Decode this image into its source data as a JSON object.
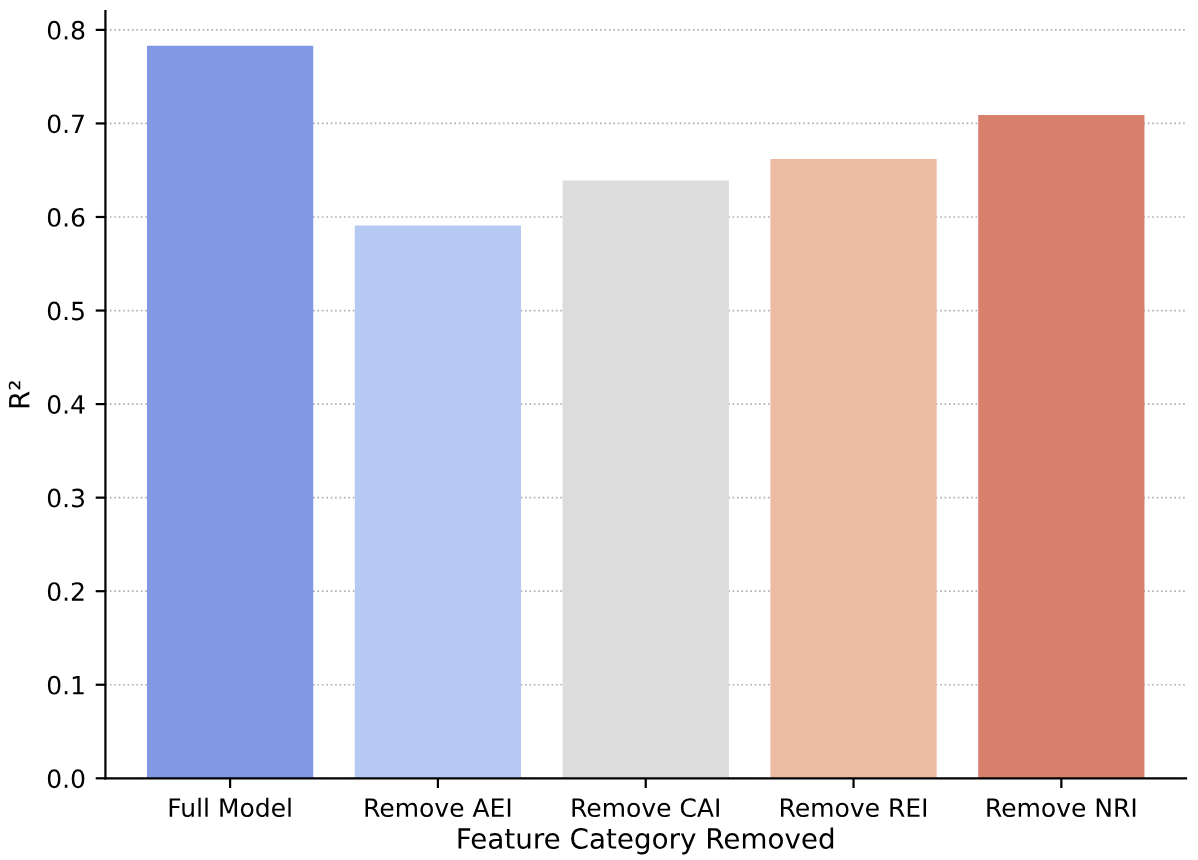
{
  "chart_data": {
    "type": "bar",
    "xlabel": "Feature Category Removed",
    "ylabel": "R²",
    "categories": [
      "Full Model",
      "Remove AEI",
      "Remove CAI",
      "Remove REI",
      "Remove NRI"
    ],
    "values": [
      0.783,
      0.591,
      0.639,
      0.662,
      0.709
    ],
    "colors": [
      "#8199e5",
      "#b5c9f2",
      "#dcdcdc",
      "#edbba2",
      "#d8806b"
    ],
    "ylim": [
      0,
      0.82
    ],
    "yticks": [
      {
        "value": 0,
        "label": "0.0"
      },
      0.1,
      0.2,
      0.3,
      0.4,
      0.5,
      0.6,
      0.7,
      0.8
    ],
    "grid": "y"
  }
}
